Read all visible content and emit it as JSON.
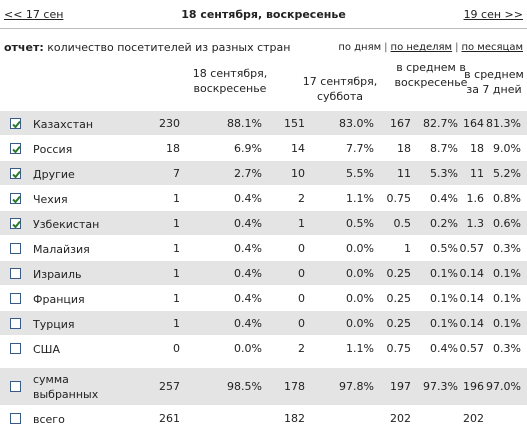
{
  "nav": {
    "prev": "<< 17 сен",
    "current": "18 сентября, воскресенье",
    "next": "19 сен >>"
  },
  "report": {
    "label": "отчет:",
    "title": "количество посетителей из разных стран",
    "views": [
      "по дням",
      "по неделям",
      "по месяцам"
    ]
  },
  "table": {
    "headers": [
      "18 сентября, воскресенье",
      "17 сентября, суббота",
      "в среднем в воскресенье",
      "в среднем за 7 дней"
    ],
    "rows": [
      {
        "checked": true,
        "name": "Казахстан",
        "cells": [
          "230",
          "88.1%",
          "151",
          "83.0%",
          "167",
          "82.7%",
          "164",
          "81.3%"
        ]
      },
      {
        "checked": true,
        "name": "Россия",
        "cells": [
          "18",
          "6.9%",
          "14",
          "7.7%",
          "18",
          "8.7%",
          "18",
          "9.0%"
        ]
      },
      {
        "checked": true,
        "name": "Другие",
        "cells": [
          "7",
          "2.7%",
          "10",
          "5.5%",
          "11",
          "5.3%",
          "11",
          "5.2%"
        ]
      },
      {
        "checked": true,
        "name": "Чехия",
        "cells": [
          "1",
          "0.4%",
          "2",
          "1.1%",
          "0.75",
          "0.4%",
          "1.6",
          "0.8%"
        ]
      },
      {
        "checked": true,
        "name": "Узбекистан",
        "cells": [
          "1",
          "0.4%",
          "1",
          "0.5%",
          "0.5",
          "0.2%",
          "1.3",
          "0.6%"
        ]
      },
      {
        "checked": false,
        "name": "Малайзия",
        "cells": [
          "1",
          "0.4%",
          "0",
          "0.0%",
          "1",
          "0.5%",
          "0.57",
          "0.3%"
        ]
      },
      {
        "checked": false,
        "name": "Израиль",
        "cells": [
          "1",
          "0.4%",
          "0",
          "0.0%",
          "0.25",
          "0.1%",
          "0.14",
          "0.1%"
        ]
      },
      {
        "checked": false,
        "name": "Франция",
        "cells": [
          "1",
          "0.4%",
          "0",
          "0.0%",
          "0.25",
          "0.1%",
          "0.14",
          "0.1%"
        ]
      },
      {
        "checked": false,
        "name": "Турция",
        "cells": [
          "1",
          "0.4%",
          "0",
          "0.0%",
          "0.25",
          "0.1%",
          "0.14",
          "0.1%"
        ]
      },
      {
        "checked": false,
        "name": "США",
        "cells": [
          "0",
          "0.0%",
          "2",
          "1.1%",
          "0.75",
          "0.4%",
          "0.57",
          "0.3%"
        ]
      }
    ],
    "summary": {
      "checked": false,
      "name": "сумма выбранных",
      "cells": [
        "257",
        "98.5%",
        "178",
        "97.8%",
        "197",
        "97.3%",
        "196",
        "97.0%"
      ]
    },
    "total": {
      "checked": false,
      "name": "всего",
      "cells": [
        "261",
        null,
        "182",
        null,
        "202",
        null,
        "202",
        null
      ]
    }
  }
}
